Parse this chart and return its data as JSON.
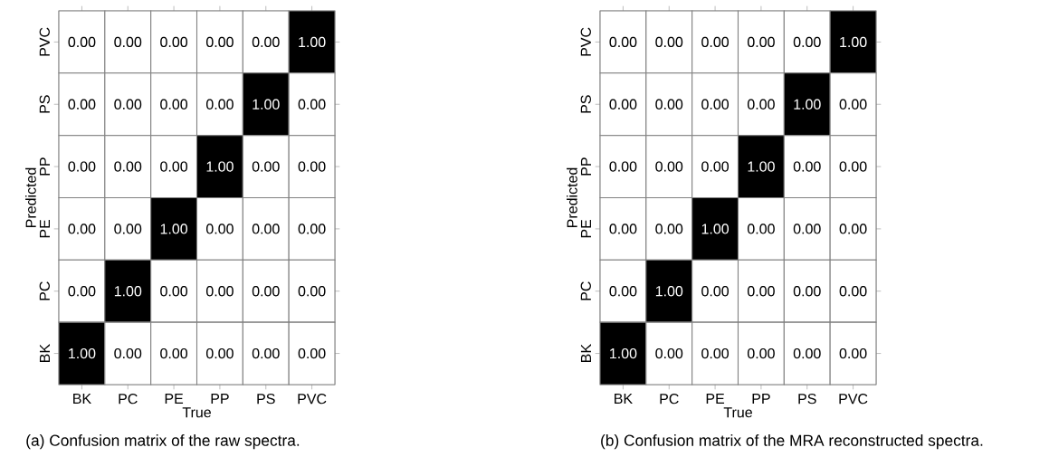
{
  "chart_data": [
    {
      "type": "heatmap",
      "categories": [
        "BK",
        "PC",
        "PE",
        "PP",
        "PS",
        "PVC"
      ],
      "y_categories": [
        "PVC",
        "PS",
        "PP",
        "PE",
        "PC",
        "BK"
      ],
      "xlabel": "True",
      "ylabel": "Predicted",
      "cells": [
        [
          0,
          0,
          0,
          0,
          0,
          1
        ],
        [
          0,
          0,
          0,
          0,
          1,
          0
        ],
        [
          0,
          0,
          0,
          1,
          0,
          0
        ],
        [
          0,
          0,
          1,
          0,
          0,
          0
        ],
        [
          0,
          1,
          0,
          0,
          0,
          0
        ],
        [
          1,
          0,
          0,
          0,
          0,
          0
        ]
      ],
      "cell_labels": [
        [
          "0.00",
          "0.00",
          "0.00",
          "0.00",
          "0.00",
          "1.00"
        ],
        [
          "0.00",
          "0.00",
          "0.00",
          "0.00",
          "1.00",
          "0.00"
        ],
        [
          "0.00",
          "0.00",
          "0.00",
          "1.00",
          "0.00",
          "0.00"
        ],
        [
          "0.00",
          "0.00",
          "1.00",
          "0.00",
          "0.00",
          "0.00"
        ],
        [
          "0.00",
          "1.00",
          "0.00",
          "0.00",
          "0.00",
          "0.00"
        ],
        [
          "1.00",
          "0.00",
          "0.00",
          "0.00",
          "0.00",
          "0.00"
        ]
      ],
      "annotations": [
        "(a) Confusion matrix of the raw spectra."
      ]
    },
    {
      "type": "heatmap",
      "categories": [
        "BK",
        "PC",
        "PE",
        "PP",
        "PS",
        "PVC"
      ],
      "y_categories": [
        "PVC",
        "PS",
        "PP",
        "PE",
        "PC",
        "BK"
      ],
      "xlabel": "True",
      "ylabel": "Predicted",
      "cells": [
        [
          0,
          0,
          0,
          0,
          0,
          1
        ],
        [
          0,
          0,
          0,
          0,
          1,
          0
        ],
        [
          0,
          0,
          0,
          1,
          0,
          0
        ],
        [
          0,
          0,
          1,
          0,
          0,
          0
        ],
        [
          0,
          1,
          0,
          0,
          0,
          0
        ],
        [
          1,
          0,
          0,
          0,
          0,
          0
        ]
      ],
      "cell_labels": [
        [
          "0.00",
          "0.00",
          "0.00",
          "0.00",
          "0.00",
          "1.00"
        ],
        [
          "0.00",
          "0.00",
          "0.00",
          "0.00",
          "1.00",
          "0.00"
        ],
        [
          "0.00",
          "0.00",
          "0.00",
          "1.00",
          "0.00",
          "0.00"
        ],
        [
          "0.00",
          "0.00",
          "1.00",
          "0.00",
          "0.00",
          "0.00"
        ],
        [
          "0.00",
          "1.00",
          "0.00",
          "0.00",
          "0.00",
          "0.00"
        ],
        [
          "1.00",
          "0.00",
          "0.00",
          "0.00",
          "0.00",
          "0.00"
        ]
      ],
      "annotations": [
        "(b) Confusion matrix of the MRA reconstructed spectra."
      ]
    }
  ]
}
